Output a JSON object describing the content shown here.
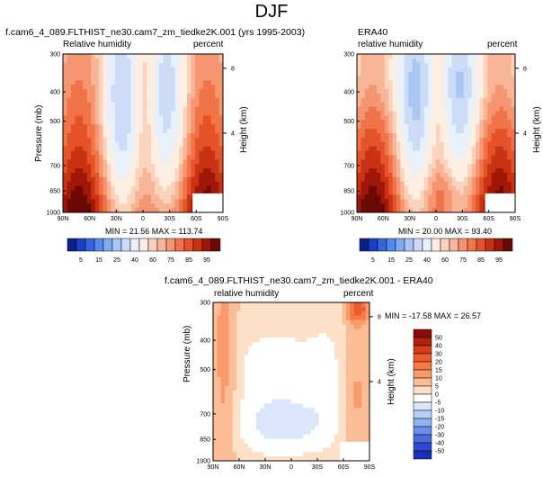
{
  "title": "DJF",
  "chart_data": [
    {
      "type": "heatmap",
      "title": "f.cam6_4_089.FLTHIST_ne30.cam7_zm_tiedke2K.001 (yrs 1995-2003)",
      "subtitle_left": "Relative humidity",
      "subtitle_right": "percent",
      "xlabel": "",
      "ylabel": "Pressure (mb)",
      "y2label": "Height (km)",
      "x_ticks": [
        "90N",
        "60N",
        "30N",
        "0",
        "30S",
        "60S",
        "90S"
      ],
      "y_ticks": [
        "300",
        "400",
        "500",
        "700",
        "850",
        "1000"
      ],
      "y2_ticks": [
        "8",
        "4"
      ],
      "stats": "MIN = 21.56   MAX = 113.74",
      "min": 21.56,
      "max": 113.74
    },
    {
      "type": "heatmap",
      "title": "ERA40",
      "subtitle_left": "relative humidity",
      "subtitle_right": "percent",
      "xlabel": "",
      "ylabel": "",
      "y2label": "Height (km)",
      "x_ticks": [
        "90N",
        "60N",
        "30N",
        "0",
        "30S",
        "60S",
        "90S"
      ],
      "y_ticks": [
        "300",
        "400",
        "500",
        "700",
        "850",
        "1000"
      ],
      "y2_ticks": [
        "8",
        "4"
      ],
      "stats": "MIN = 20.00   MAX = 93.40",
      "min": 20.0,
      "max": 93.4
    },
    {
      "type": "heatmap",
      "title": "f.cam6_4_089.FLTHIST_ne30.cam7_zm_tiedke2K.001 - ERA40",
      "subtitle_left": "relative humidity",
      "subtitle_right": "percent",
      "xlabel": "",
      "ylabel": "Pressure (mb)",
      "y2label": "Height (km)",
      "x_ticks": [
        "90N",
        "60N",
        "30N",
        "0",
        "30S",
        "60S",
        "90S"
      ],
      "y_ticks": [
        "300",
        "400",
        "500",
        "700",
        "850",
        "1000"
      ],
      "y2_ticks": [
        "8",
        "4"
      ],
      "stats": "MIN = -17.58   MAX = 26.57",
      "min": -17.58,
      "max": 26.57
    }
  ],
  "colorbar_abs": {
    "labels": [
      "5",
      "15",
      "25",
      "40",
      "60",
      "75",
      "85",
      "95"
    ],
    "colors": [
      "#0a1f8c",
      "#1a3fc8",
      "#3366e0",
      "#5588ee",
      "#7faaf0",
      "#a9c7f5",
      "#ccdcf7",
      "#e8f0fb",
      "#fdeee4",
      "#fbd2bc",
      "#f8b597",
      "#f59571",
      "#f07448",
      "#e5532a",
      "#c93213",
      "#a0170a",
      "#6b0a04"
    ]
  },
  "colorbar_diff": {
    "labels": [
      "50",
      "40",
      "30",
      "20",
      "15",
      "10",
      "5",
      "0",
      "-5",
      "-10",
      "-15",
      "-20",
      "-30",
      "-40",
      "-50"
    ],
    "colors": [
      "#8a0c04",
      "#b3200c",
      "#d73c16",
      "#ef5c2a",
      "#f57a45",
      "#f99b6a",
      "#fbbd95",
      "#fde0c8",
      "#ffffff",
      "#d9e6fb",
      "#b9d0f6",
      "#93b2f0",
      "#6b8ee6",
      "#4a6bdc",
      "#2e4bd0",
      "#1a2fb8"
    ]
  }
}
